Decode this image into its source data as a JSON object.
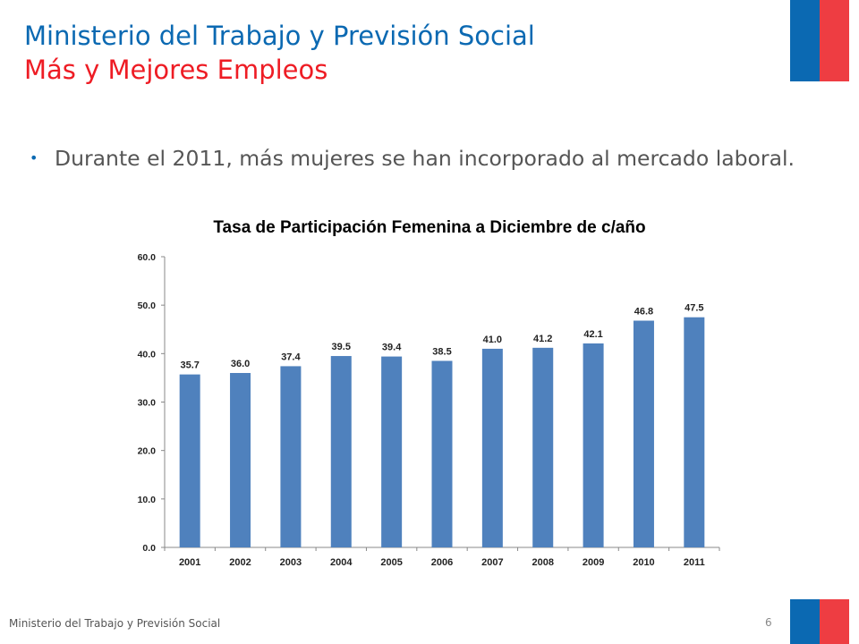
{
  "header": {
    "title": "Ministerio del Trabajo y Previsión Social",
    "subtitle": "Más y Mejores Empleos"
  },
  "body": {
    "bullet": "Durante el 2011, más mujeres se han incorporado al mercado laboral."
  },
  "chart_data": {
    "type": "bar",
    "title": "Tasa de Participación Femenina a Diciembre de c/año",
    "xlabel": "",
    "ylabel": "",
    "categories": [
      "2001",
      "2002",
      "2003",
      "2004",
      "2005",
      "2006",
      "2007",
      "2008",
      "2009",
      "2010",
      "2011"
    ],
    "values": [
      35.7,
      36.0,
      37.4,
      39.5,
      39.4,
      38.5,
      41.0,
      41.2,
      42.1,
      46.8,
      47.5
    ],
    "value_labels": [
      "35.7",
      "36.0",
      "37.4",
      "39.5",
      "39.4",
      "38.5",
      "41.0",
      "41.2",
      "42.1",
      "46.8",
      "47.5"
    ],
    "yticks": [
      "0.0",
      "10.0",
      "20.0",
      "30.0",
      "40.0",
      "50.0",
      "60.0"
    ],
    "ylim": [
      0,
      60
    ],
    "grid": false,
    "legend": "none",
    "bar_color": "#4f81bd"
  },
  "footer": {
    "org": "Ministerio del Trabajo y Previsión Social",
    "page": "6"
  },
  "colors": {
    "brand_blue": "#0b69b2",
    "brand_red": "#ee3d42",
    "subtitle_red": "#ee1c24"
  }
}
